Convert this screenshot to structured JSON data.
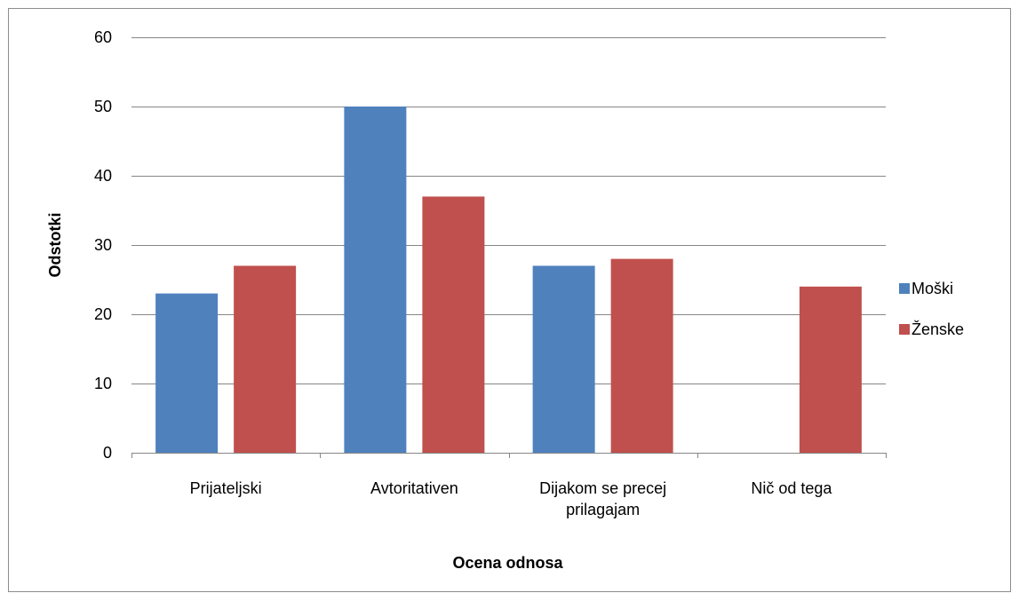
{
  "chart_data": {
    "type": "bar",
    "categories": [
      "Prijateljski",
      "Avtoritativen",
      "Dijakom se precej prilagajam",
      "Nič od tega"
    ],
    "series": [
      {
        "name": "Moški",
        "color": "#4f81bd",
        "values": [
          23,
          50,
          27,
          0
        ]
      },
      {
        "name": "Ženske",
        "color": "#c0504d",
        "values": [
          27,
          37,
          28,
          24
        ]
      }
    ],
    "ylim": [
      0,
      60
    ],
    "yticks": [
      0,
      10,
      20,
      30,
      40,
      50,
      60
    ],
    "grid": true,
    "ylabel": "Odstotki",
    "xlabel": "Ocena odnosa",
    "legend": "right"
  }
}
